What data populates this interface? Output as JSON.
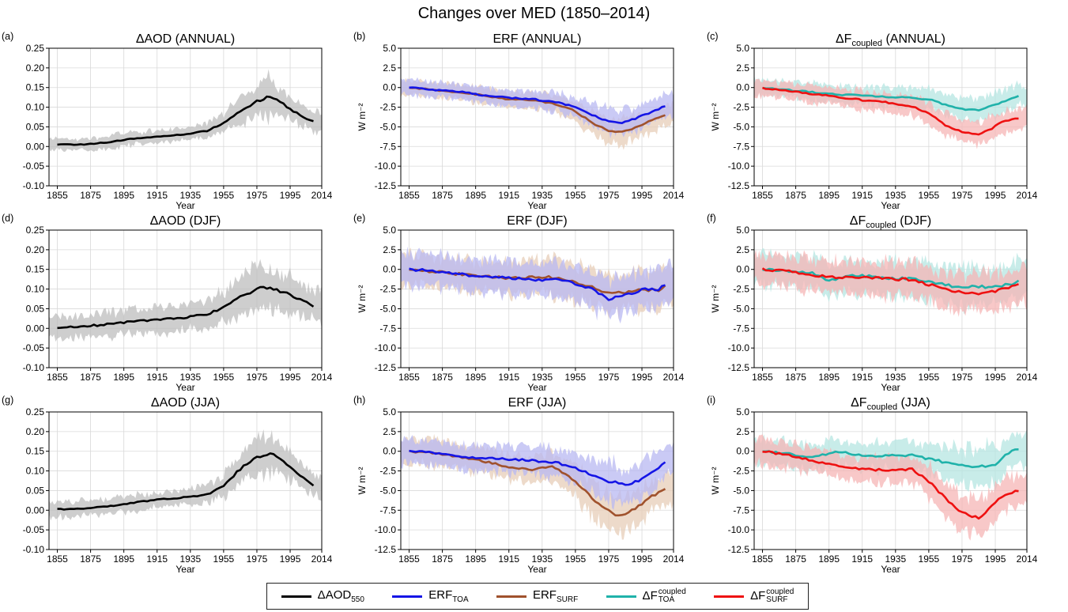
{
  "figure_title": "Changes over MED (1850–2014)",
  "legend": [
    {
      "key": "aod",
      "base": "ΔAOD",
      "sub": "550",
      "sup": "",
      "color": "#000000"
    },
    {
      "key": "toa",
      "base": "ERF",
      "sub": "TOA",
      "sup": "",
      "color": "#1515e6"
    },
    {
      "key": "surf",
      "base": "ERF",
      "sub": "SURF",
      "sup": "",
      "color": "#a0522d"
    },
    {
      "key": "ctoa",
      "base": "ΔF",
      "sub": "TOA",
      "sup": "coupled",
      "color": "#20b2aa"
    },
    {
      "key": "csurf",
      "base": "ΔF",
      "sub": "SURF",
      "sup": "coupled",
      "color": "#ee1111"
    }
  ],
  "colors": {
    "aod": "#000000",
    "aod_band": "#bdbdbd",
    "toa": "#1515e6",
    "toa_band": "#b8b8f2",
    "surf": "#a0522d",
    "surf_band": "#e7cdb8",
    "ctoa": "#20b2aa",
    "ctoa_band": "#b5e6e2",
    "csurf": "#ee1111",
    "csurf_band": "#f6b5b5"
  },
  "chart_data": [
    {
      "id": "a",
      "letter": "(a)",
      "type": "line",
      "title": "ΔAOD (ANNUAL)",
      "xlabel": "Year",
      "ylabel": "",
      "xlim": [
        1850,
        2014
      ],
      "ylim": [
        -0.1,
        0.25
      ],
      "xticks": [
        1855,
        1875,
        1895,
        1915,
        1935,
        1955,
        1975,
        1995,
        2014
      ],
      "yticks": [
        "-0.10",
        "-0.05",
        "0.00",
        "0.05",
        "0.10",
        "0.15",
        "0.20",
        "0.25"
      ],
      "series": [
        {
          "key": "aod",
          "x": [
            1855,
            1870,
            1885,
            1900,
            1915,
            1930,
            1945,
            1955,
            1965,
            1975,
            1982,
            1987,
            1995,
            2005,
            2010
          ],
          "y": [
            0.005,
            0.005,
            0.01,
            0.02,
            0.025,
            0.03,
            0.04,
            0.06,
            0.09,
            0.115,
            0.125,
            0.12,
            0.095,
            0.07,
            0.063
          ],
          "spread": [
            0.018,
            0.018,
            0.02,
            0.02,
            0.02,
            0.02,
            0.025,
            0.03,
            0.04,
            0.05,
            0.06,
            0.05,
            0.035,
            0.03,
            0.03
          ]
        }
      ]
    },
    {
      "id": "b",
      "letter": "(b)",
      "type": "line",
      "title": "ERF (ANNUAL)",
      "xlabel": "Year",
      "ylabel": "W m⁻²",
      "xlim": [
        1850,
        2014
      ],
      "ylim": [
        -12.5,
        5.0
      ],
      "xticks": [
        1855,
        1875,
        1895,
        1915,
        1935,
        1955,
        1975,
        1995,
        2014
      ],
      "yticks": [
        "-12.5",
        "-10.0",
        "-7.5",
        "-5.0",
        "-2.5",
        "0.0",
        "2.5",
        "5.0"
      ],
      "series": [
        {
          "key": "surf",
          "x": [
            1855,
            1870,
            1885,
            1900,
            1915,
            1930,
            1945,
            1955,
            1965,
            1975,
            1982,
            1990,
            2000,
            2010
          ],
          "y": [
            0,
            -0.3,
            -0.6,
            -1.0,
            -1.5,
            -1.6,
            -2.2,
            -3.0,
            -4.5,
            -5.5,
            -5.7,
            -5.2,
            -4.3,
            -3.5
          ],
          "spread": [
            1.2,
            1.2,
            1.2,
            1.3,
            1.3,
            1.4,
            1.5,
            1.6,
            1.8,
            2.0,
            2.0,
            2.0,
            1.8,
            1.8
          ]
        },
        {
          "key": "toa",
          "x": [
            1855,
            1870,
            1885,
            1900,
            1915,
            1930,
            1945,
            1955,
            1965,
            1975,
            1982,
            1990,
            2000,
            2010
          ],
          "y": [
            0,
            -0.3,
            -0.5,
            -1.0,
            -1.3,
            -1.5,
            -1.9,
            -2.5,
            -3.5,
            -4.3,
            -4.6,
            -4.0,
            -3.2,
            -2.2
          ],
          "spread": [
            1.2,
            1.2,
            1.2,
            1.3,
            1.3,
            1.4,
            1.5,
            1.6,
            1.8,
            2.0,
            2.0,
            2.0,
            1.8,
            1.8
          ]
        }
      ]
    },
    {
      "id": "c",
      "letter": "(c)",
      "type": "line",
      "title": "ΔF",
      "title_sub": "coupled",
      "title_tail": " (ANNUAL)",
      "xlabel": "Year",
      "ylabel": "W m⁻²",
      "xlim": [
        1850,
        2014
      ],
      "ylim": [
        -12.5,
        5.0
      ],
      "xticks": [
        1855,
        1875,
        1895,
        1915,
        1935,
        1955,
        1975,
        1995,
        2014
      ],
      "yticks": [
        "-12.5",
        "-10.0",
        "-7.5",
        "-5.0",
        "-2.5",
        "0.0",
        "2.5",
        "5.0"
      ],
      "series": [
        {
          "key": "ctoa",
          "x": [
            1855,
            1870,
            1885,
            1900,
            1915,
            1930,
            1945,
            1955,
            1965,
            1975,
            1985,
            1995,
            2005,
            2010
          ],
          "y": [
            0,
            -0.3,
            -0.6,
            -0.9,
            -1.0,
            -1.2,
            -1.3,
            -1.5,
            -2.2,
            -2.7,
            -2.8,
            -2.2,
            -1.3,
            -0.9
          ],
          "spread": [
            1.3,
            1.3,
            1.4,
            1.4,
            1.5,
            1.5,
            1.6,
            1.7,
            1.8,
            1.9,
            2.0,
            1.9,
            1.8,
            1.8
          ]
        },
        {
          "key": "csurf",
          "x": [
            1855,
            1870,
            1885,
            1900,
            1915,
            1930,
            1945,
            1955,
            1965,
            1975,
            1985,
            1992,
            2000,
            2010
          ],
          "y": [
            -0.1,
            -0.4,
            -0.8,
            -1.2,
            -1.6,
            -1.9,
            -2.4,
            -3.3,
            -4.8,
            -5.6,
            -5.9,
            -5.3,
            -4.3,
            -3.8
          ],
          "spread": [
            1.3,
            1.3,
            1.4,
            1.4,
            1.5,
            1.5,
            1.6,
            1.7,
            1.8,
            1.9,
            2.0,
            1.9,
            1.8,
            1.8
          ]
        }
      ]
    },
    {
      "id": "d",
      "letter": "(d)",
      "type": "line",
      "title": "ΔAOD (DJF)",
      "xlabel": "Year",
      "ylabel": "",
      "xlim": [
        1850,
        2014
      ],
      "ylim": [
        -0.1,
        0.25
      ],
      "xticks": [
        1855,
        1875,
        1895,
        1915,
        1935,
        1955,
        1975,
        1995,
        2014
      ],
      "yticks": [
        "-0.10",
        "-0.05",
        "0.00",
        "0.05",
        "0.10",
        "0.15",
        "0.20",
        "0.25"
      ],
      "series": [
        {
          "key": "aod",
          "x": [
            1855,
            1870,
            1885,
            1900,
            1915,
            1930,
            1945,
            1955,
            1965,
            1975,
            1982,
            1995,
            2005,
            2010
          ],
          "y": [
            0.003,
            0.005,
            0.01,
            0.018,
            0.022,
            0.027,
            0.035,
            0.055,
            0.08,
            0.1,
            0.103,
            0.085,
            0.065,
            0.056
          ],
          "spread": [
            0.035,
            0.035,
            0.04,
            0.04,
            0.04,
            0.04,
            0.045,
            0.05,
            0.06,
            0.07,
            0.07,
            0.06,
            0.05,
            0.05
          ]
        }
      ]
    },
    {
      "id": "e",
      "letter": "(e)",
      "type": "line",
      "title": "ERF (DJF)",
      "xlabel": "Year",
      "ylabel": "W m⁻²",
      "xlim": [
        1850,
        2014
      ],
      "ylim": [
        -12.5,
        5.0
      ],
      "xticks": [
        1855,
        1875,
        1895,
        1915,
        1935,
        1955,
        1975,
        1995,
        2014
      ],
      "yticks": [
        "-12.5",
        "-10.0",
        "-7.5",
        "-5.0",
        "-2.5",
        "0.0",
        "2.5",
        "5.0"
      ],
      "series": [
        {
          "key": "surf",
          "x": [
            1855,
            1870,
            1885,
            1900,
            1915,
            1930,
            1945,
            1955,
            1965,
            1975,
            1985,
            1995,
            2005,
            2010
          ],
          "y": [
            0,
            -0.3,
            -0.6,
            -0.9,
            -1.1,
            -1.0,
            -1.0,
            -1.6,
            -2.2,
            -3.0,
            -3.0,
            -2.6,
            -2.6,
            -2.0
          ],
          "spread": [
            2.5,
            2.5,
            2.6,
            2.6,
            2.7,
            2.7,
            2.8,
            2.9,
            3.0,
            3.0,
            3.0,
            3.0,
            3.0,
            3.0
          ]
        },
        {
          "key": "toa",
          "x": [
            1855,
            1870,
            1885,
            1900,
            1915,
            1930,
            1945,
            1955,
            1965,
            1975,
            1985,
            1995,
            2005,
            2010
          ],
          "y": [
            0,
            -0.2,
            -0.6,
            -0.9,
            -1.1,
            -1.3,
            -1.3,
            -1.8,
            -2.5,
            -3.8,
            -3.2,
            -2.6,
            -2.5,
            -1.9
          ],
          "spread": [
            2.5,
            2.5,
            2.6,
            2.6,
            2.7,
            2.7,
            2.8,
            2.9,
            3.0,
            3.0,
            3.0,
            3.0,
            3.0,
            3.0
          ]
        }
      ]
    },
    {
      "id": "f",
      "letter": "(f)",
      "type": "line",
      "title": "ΔF",
      "title_sub": "coupled",
      "title_tail": " (DJF)",
      "xlabel": "Year",
      "ylabel": "W m⁻²",
      "xlim": [
        1850,
        2014
      ],
      "ylim": [
        -12.5,
        5.0
      ],
      "xticks": [
        1855,
        1875,
        1895,
        1915,
        1935,
        1955,
        1975,
        1995,
        2014
      ],
      "yticks": [
        "-12.5",
        "-10.0",
        "-7.5",
        "-5.0",
        "-2.5",
        "0.0",
        "2.5",
        "5.0"
      ],
      "series": [
        {
          "key": "ctoa",
          "x": [
            1855,
            1870,
            1885,
            1895,
            1905,
            1915,
            1930,
            1945,
            1955,
            1965,
            1975,
            1985,
            1995,
            2005,
            2010
          ],
          "y": [
            0,
            -0.2,
            -0.5,
            -1.5,
            -0.8,
            -0.8,
            -1.1,
            -1.2,
            -1.6,
            -2.0,
            -2.2,
            -2.2,
            -2.2,
            -1.8,
            -1.3
          ],
          "spread": [
            2.5,
            2.5,
            2.6,
            2.6,
            2.7,
            2.7,
            2.8,
            2.9,
            3.0,
            3.0,
            3.0,
            3.0,
            3.0,
            3.0,
            3.0
          ]
        },
        {
          "key": "csurf",
          "x": [
            1855,
            1870,
            1885,
            1900,
            1915,
            1930,
            1945,
            1955,
            1965,
            1975,
            1985,
            1995,
            2005,
            2010
          ],
          "y": [
            0,
            -0.2,
            -0.7,
            -1.0,
            -1.0,
            -1.2,
            -1.3,
            -1.9,
            -2.6,
            -3.0,
            -3.0,
            -2.8,
            -2.2,
            -1.9
          ],
          "spread": [
            2.5,
            2.5,
            2.6,
            2.6,
            2.7,
            2.7,
            2.8,
            2.9,
            3.0,
            3.0,
            3.0,
            3.0,
            3.0,
            3.0
          ]
        }
      ]
    },
    {
      "id": "g",
      "letter": "(g)",
      "type": "line",
      "title": "ΔAOD (JJA)",
      "xlabel": "Year",
      "ylabel": "",
      "xlim": [
        1850,
        2014
      ],
      "ylim": [
        -0.1,
        0.25
      ],
      "xticks": [
        1855,
        1875,
        1895,
        1915,
        1935,
        1955,
        1975,
        1995,
        2014
      ],
      "yticks": [
        "-0.10",
        "-0.05",
        "0.00",
        "0.05",
        "0.10",
        "0.15",
        "0.20",
        "0.25"
      ],
      "series": [
        {
          "key": "aod",
          "x": [
            1855,
            1870,
            1885,
            1900,
            1915,
            1930,
            1945,
            1955,
            1965,
            1975,
            1984,
            1990,
            2000,
            2010
          ],
          "y": [
            0.002,
            0.005,
            0.01,
            0.018,
            0.027,
            0.032,
            0.04,
            0.062,
            0.105,
            0.135,
            0.145,
            0.13,
            0.09,
            0.062
          ],
          "spread": [
            0.025,
            0.025,
            0.025,
            0.025,
            0.025,
            0.025,
            0.03,
            0.035,
            0.05,
            0.06,
            0.06,
            0.05,
            0.04,
            0.035
          ]
        }
      ]
    },
    {
      "id": "h",
      "letter": "(h)",
      "type": "line",
      "title": "ERF (JJA)",
      "xlabel": "Year",
      "ylabel": "W m⁻²",
      "xlim": [
        1850,
        2014
      ],
      "ylim": [
        -12.5,
        5.0
      ],
      "xticks": [
        1855,
        1875,
        1895,
        1915,
        1935,
        1955,
        1975,
        1995,
        2014
      ],
      "yticks": [
        "-12.5",
        "-10.0",
        "-7.5",
        "-5.0",
        "-2.5",
        "0.0",
        "2.5",
        "5.0"
      ],
      "series": [
        {
          "key": "surf",
          "x": [
            1855,
            1870,
            1885,
            1900,
            1915,
            1930,
            1940,
            1950,
            1960,
            1970,
            1980,
            1990,
            2000,
            2010
          ],
          "y": [
            0,
            -0.2,
            -0.7,
            -1.3,
            -2.0,
            -2.3,
            -1.9,
            -3.0,
            -4.8,
            -7.0,
            -8.2,
            -7.5,
            -5.8,
            -4.8
          ],
          "spread": [
            2.0,
            2.0,
            2.0,
            2.0,
            2.0,
            2.2,
            2.2,
            2.5,
            2.8,
            3.0,
            3.0,
            3.0,
            2.7,
            2.5
          ]
        },
        {
          "key": "toa",
          "x": [
            1855,
            1870,
            1885,
            1900,
            1915,
            1930,
            1945,
            1955,
            1965,
            1975,
            1985,
            1995,
            2005,
            2010
          ],
          "y": [
            0,
            -0.2,
            -0.7,
            -0.9,
            -1.0,
            -1.2,
            -1.5,
            -2.2,
            -3.0,
            -3.8,
            -4.3,
            -3.6,
            -2.2,
            -1.0
          ],
          "spread": [
            2.0,
            2.0,
            2.0,
            2.0,
            2.0,
            2.2,
            2.2,
            2.5,
            2.8,
            3.0,
            3.0,
            3.0,
            2.7,
            2.5
          ]
        }
      ]
    },
    {
      "id": "i",
      "letter": "(i)",
      "type": "line",
      "title": "ΔF",
      "title_sub": "coupled",
      "title_tail": " (JJA)",
      "xlabel": "Year",
      "ylabel": "W m⁻²",
      "xlim": [
        1850,
        2014
      ],
      "ylim": [
        -12.5,
        5.0
      ],
      "xticks": [
        1855,
        1875,
        1895,
        1915,
        1935,
        1955,
        1975,
        1995,
        2014
      ],
      "yticks": [
        "-12.5",
        "-10.0",
        "-7.5",
        "-5.0",
        "-2.5",
        "0.0",
        "2.5",
        "5.0"
      ],
      "series": [
        {
          "key": "ctoa",
          "x": [
            1855,
            1870,
            1885,
            1900,
            1915,
            1930,
            1945,
            1955,
            1965,
            1975,
            1985,
            1995,
            2005,
            2010
          ],
          "y": [
            0,
            -0.3,
            -0.8,
            0,
            -0.6,
            -0.6,
            -0.5,
            -1.0,
            -1.4,
            -1.8,
            -2.0,
            -1.7,
            0.2,
            0.3
          ],
          "spread": [
            2.0,
            2.0,
            2.0,
            2.0,
            2.0,
            2.2,
            2.2,
            2.5,
            2.8,
            3.0,
            3.0,
            3.0,
            2.7,
            2.5
          ]
        },
        {
          "key": "csurf",
          "x": [
            1855,
            1870,
            1885,
            1900,
            1915,
            1930,
            1945,
            1955,
            1965,
            1975,
            1985,
            1990,
            2000,
            2010
          ],
          "y": [
            0,
            -0.5,
            -1.2,
            -1.9,
            -2.3,
            -2.4,
            -2.3,
            -3.8,
            -6.0,
            -7.8,
            -8.5,
            -7.5,
            -5.5,
            -5.0
          ],
          "spread": [
            2.0,
            2.0,
            2.0,
            2.0,
            2.0,
            2.2,
            2.2,
            2.5,
            2.8,
            3.0,
            3.0,
            3.0,
            2.7,
            2.5
          ]
        }
      ]
    }
  ]
}
